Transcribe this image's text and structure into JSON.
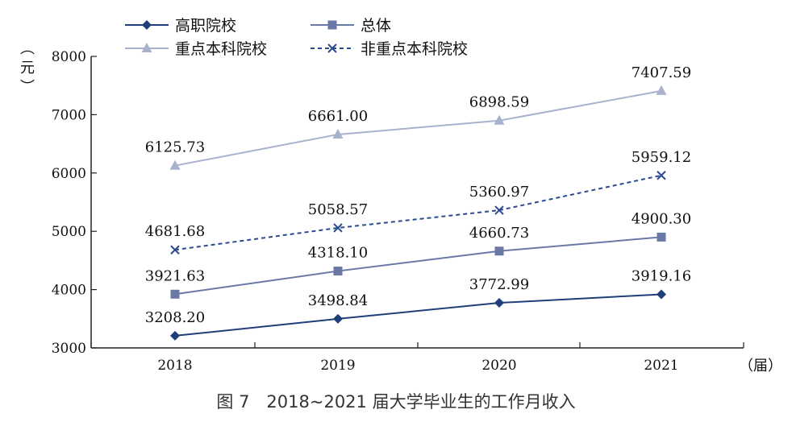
{
  "chart_data": {
    "type": "line",
    "title": "图 7　2018~2021 届大学毕业生的工作月收入",
    "xlabel": "（届）",
    "ylabel": "（元）",
    "categories": [
      "2018",
      "2019",
      "2020",
      "2021"
    ],
    "ylim": [
      3000,
      8000
    ],
    "yticks": [
      3000,
      4000,
      5000,
      6000,
      7000,
      8000
    ],
    "grid": false,
    "legend_position": "top-left",
    "series": [
      {
        "name": "高职院校",
        "values": [
          3208.2,
          3498.84,
          3772.99,
          3919.16
        ],
        "labels": [
          "3208.20",
          "3498.84",
          "3772.99",
          "3919.16"
        ],
        "marker": "diamond",
        "line": "solid",
        "color": "#1f3f7a"
      },
      {
        "name": "总体",
        "values": [
          3921.63,
          4318.1,
          4660.73,
          4900.3
        ],
        "labels": [
          "3921.63",
          "4318.10",
          "4660.73",
          "4900.30"
        ],
        "marker": "square",
        "line": "solid",
        "color": "#6a78a6"
      },
      {
        "name": "重点本科院校",
        "values": [
          6125.73,
          6661.0,
          6898.59,
          7407.59
        ],
        "labels": [
          "6125.73",
          "6661.00",
          "6898.59",
          "7407.59"
        ],
        "marker": "triangle",
        "line": "solid",
        "color": "#a9b2cd"
      },
      {
        "name": "非重点本科院校",
        "values": [
          4681.68,
          5058.57,
          5360.97,
          5959.12
        ],
        "labels": [
          "4681.68",
          "5058.57",
          "5360.97",
          "5959.12"
        ],
        "marker": "x",
        "line": "dashed",
        "color": "#2a4b8f"
      }
    ]
  }
}
